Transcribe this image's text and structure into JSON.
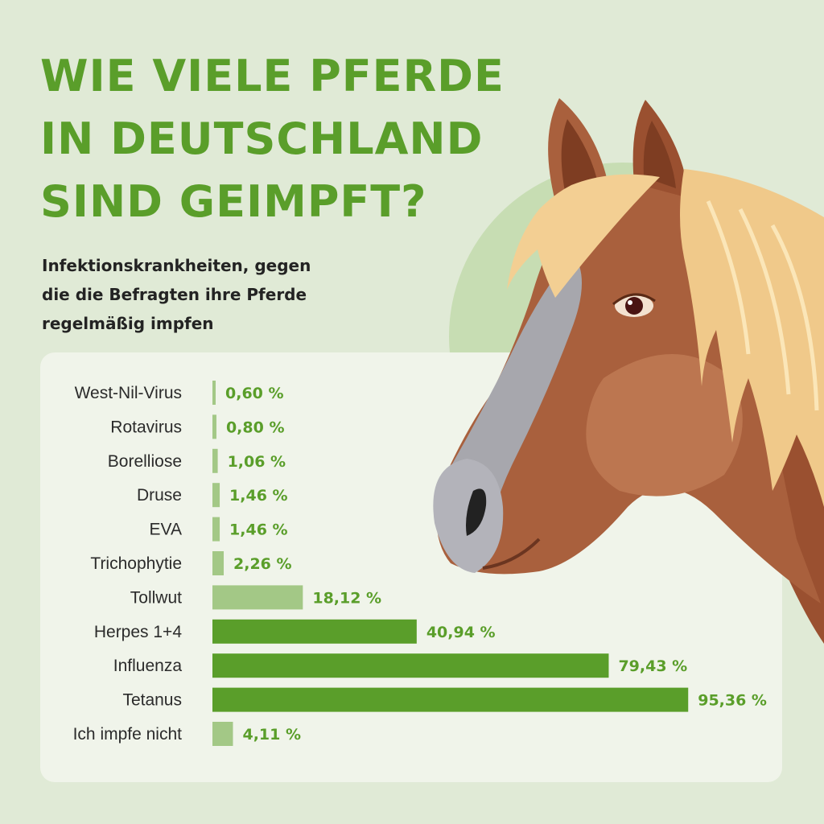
{
  "header": {
    "title_lines": [
      "WIE VIELE PFERDE",
      "IN DEUTSCHLAND",
      "SIND GEIMPFT?"
    ],
    "subtitle_lines": [
      "Infektionskrankheiten, gegen",
      "die die Befragten ihre Pferde",
      "regelmäßig impfen"
    ]
  },
  "colors": {
    "background": "#e0ead6",
    "title": "#5a9e2a",
    "bar_dark": "#5a9e2a",
    "bar_light": "#a3c886",
    "value_text": "#5a9e2a"
  },
  "illustration": {
    "icon": "horse-head-illustration"
  },
  "chart_data": {
    "type": "bar",
    "orientation": "horizontal",
    "categories": [
      "West-Nil-Virus",
      "Rotavirus",
      "Borelliose",
      "Druse",
      "EVA",
      "Trichophytie",
      "Tollwut",
      "Herpes 1+4",
      "Influenza",
      "Tetanus",
      "Ich impfe nicht"
    ],
    "values": [
      0.6,
      0.8,
      1.06,
      1.46,
      1.46,
      2.26,
      18.12,
      40.94,
      79.43,
      95.36,
      4.11
    ],
    "value_labels": [
      "0,60 %",
      "0,80 %",
      "1,06 %",
      "1,46 %",
      "1,46 %",
      "2,26 %",
      "18,12 %",
      "40,94 %",
      "79,43 %",
      "95,36 %",
      "4,11 %"
    ],
    "highlight": [
      false,
      false,
      false,
      false,
      false,
      false,
      false,
      true,
      true,
      true,
      false
    ],
    "unit": "%",
    "xlim": [
      0,
      100
    ],
    "grid": false,
    "legend": "none"
  }
}
